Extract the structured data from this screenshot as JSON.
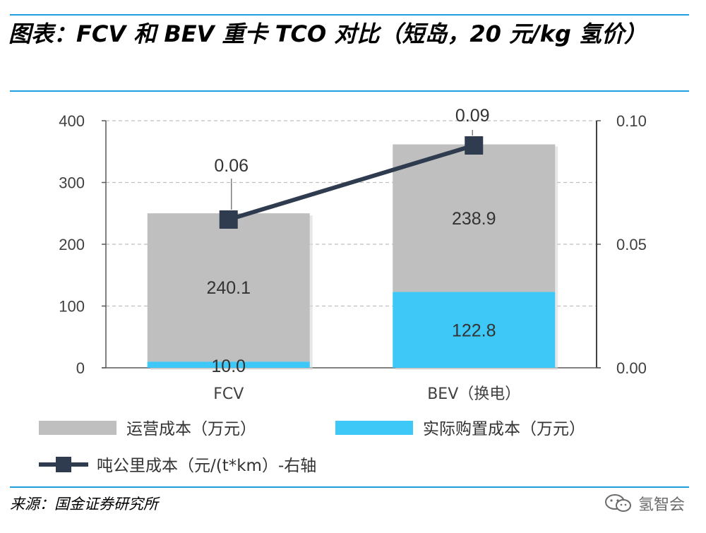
{
  "title": "图表：FCV 和 BEV 重卡 TCO 对比（短岛，20 元/kg 氢价）",
  "source": "来源：国金证券研究所",
  "watermark": "氢智会",
  "colors": {
    "operating": "#bfbfbf",
    "purchase": "#3dc8f7",
    "line": "#2f3b4e",
    "grid": "#bfbfbf",
    "rule": "#1f9ee0"
  },
  "chart_data": {
    "type": "bar",
    "stacked": true,
    "categories": [
      "FCV",
      "BEV（换电）"
    ],
    "series": [
      {
        "name": "实际购置成本（万元）",
        "type": "bar",
        "axis": "left",
        "values": [
          10.0,
          122.8
        ],
        "labels": [
          "10.0",
          "122.8"
        ],
        "color": "#3dc8f7"
      },
      {
        "name": "运营成本（万元）",
        "type": "bar",
        "axis": "left",
        "values": [
          240.1,
          238.9
        ],
        "labels": [
          "240.1",
          "238.9"
        ],
        "color": "#bfbfbf"
      },
      {
        "name": "吨公里成本（元/(t*km）-右轴",
        "type": "line",
        "axis": "right",
        "values": [
          0.06,
          0.09
        ],
        "labels": [
          "0.06",
          "0.09"
        ],
        "color": "#2f3b4e"
      }
    ],
    "ylim": [
      0,
      400
    ],
    "yticks": [
      "0",
      "100",
      "200",
      "300",
      "400"
    ],
    "y2lim": [
      0,
      0.1
    ],
    "y2ticks": [
      "0.00",
      "0.05",
      "0.10"
    ],
    "grid": true,
    "legend_position": "bottom",
    "legend_order": [
      "运营成本（万元）",
      "实际购置成本（万元）",
      "吨公里成本（元/(t*km）-右轴"
    ]
  }
}
